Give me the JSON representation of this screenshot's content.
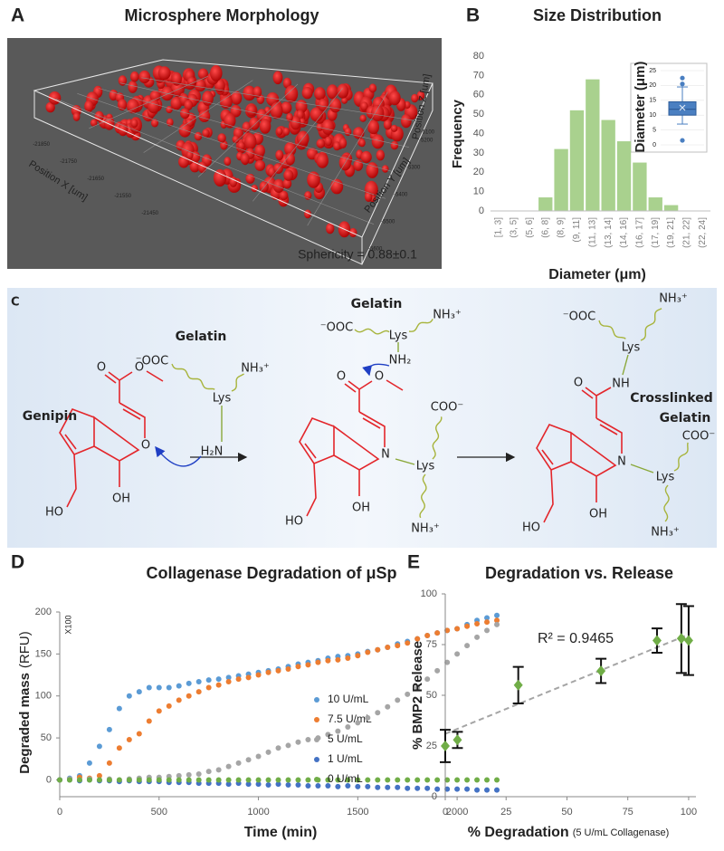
{
  "panel_a": {
    "panel": "A",
    "title": "Microsphere Morphology",
    "annotation": "Sphericity = 0.88±0.1",
    "axis_labels": [
      "Position X [um]",
      "Position Y [um]",
      "Position Z [um]"
    ],
    "x_ticks": [
      "-21850",
      "-21750",
      "-21650",
      "-21550",
      "-21450"
    ],
    "y_ticks": [
      "-5200",
      "-5300",
      "-5400",
      "-5500",
      "-5600"
    ],
    "z_ticks": [
      "-5100"
    ]
  },
  "scheme": {
    "panel": "C",
    "genipin": {
      "name": "Genipin",
      "atoms": [
        "O",
        "O",
        "O",
        "HO",
        "OH"
      ]
    },
    "gelatin_1": {
      "name": "Gelatin",
      "groups": [
        "⁻OOC",
        "NH₃⁺",
        "Lys",
        "H₂N"
      ]
    },
    "intermediate": {
      "atoms": [
        "O",
        "O",
        "N",
        "HO",
        "OH"
      ],
      "groups": [
        "Lys",
        "COO⁻",
        "NH₃⁺"
      ]
    },
    "gelatin_2": {
      "name": "Gelatin",
      "groups": [
        "⁻OOC",
        "NH₃⁺",
        "Lys",
        "NH₂"
      ]
    },
    "product": {
      "name": [
        "Crosslinked",
        "Gelatin"
      ],
      "atoms": [
        "O",
        "NH",
        "N",
        "HO",
        "OH"
      ],
      "groups": [
        "⁻OOC",
        "NH₃⁺",
        "Lys",
        "Lys",
        "COO⁻",
        "NH₃⁺"
      ]
    }
  },
  "chart_data": [
    {
      "type": "bar",
      "panel": "B",
      "title": "Size Distribution",
      "xlabel": "Diameter (μm)",
      "ylabel": "Frequency",
      "categories": [
        "[1, 3]",
        "(3, 5]",
        "(5, 6]",
        "(6, 8]",
        "(8, 9]",
        "(9, 11]",
        "(11, 13]",
        "(13, 14]",
        "(14, 16]",
        "(16, 17]",
        "(17, 19]",
        "(19, 21]",
        "(21, 22]",
        "(22, 24]"
      ],
      "values": [
        0,
        0,
        0,
        7,
        32,
        52,
        68,
        47,
        36,
        25,
        7,
        3,
        0,
        0
      ],
      "color": "#a9d18e",
      "ylim": [
        0,
        80
      ],
      "yticks": [
        0,
        10,
        20,
        30,
        40,
        50,
        60,
        70,
        80
      ]
    },
    {
      "type": "box",
      "ylabel": "Diameter (μm)",
      "ylim": [
        0,
        25
      ],
      "yticks": [
        0,
        5,
        10,
        15,
        20,
        25
      ],
      "color": "#4a7fc1",
      "box": {
        "min": 7,
        "q1": 10,
        "median": 12,
        "q3": 14.5,
        "max": 19.5,
        "mean": 12.5,
        "outliers": [
          22.5,
          20.5,
          1.5
        ]
      }
    },
    {
      "type": "scatter",
      "panel": "D",
      "title": "Collagenase Degradation of μSp",
      "xlabel": "Time (min)",
      "ylabel": "Degraded mass",
      "ylabel_unit": "(RFU)",
      "note": "X100",
      "xlim": [
        0,
        2250
      ],
      "ylim": [
        -20,
        200
      ],
      "xticks": [
        0,
        500,
        1000,
        1500,
        2000
      ],
      "yticks": [
        0,
        50,
        100,
        150,
        200
      ],
      "x": [
        0,
        50,
        100,
        150,
        200,
        250,
        300,
        350,
        400,
        450,
        500,
        550,
        600,
        650,
        700,
        750,
        800,
        850,
        900,
        950,
        1000,
        1050,
        1100,
        1150,
        1200,
        1250,
        1300,
        1350,
        1400,
        1450,
        1500,
        1550,
        1600,
        1650,
        1700,
        1750,
        1800,
        1850,
        1900,
        1950,
        2000,
        2050,
        2100,
        2150,
        2200
      ],
      "series": [
        {
          "name": "10 U/mL",
          "color": "#5b9bd5",
          "values": [
            0,
            2,
            5,
            20,
            40,
            60,
            85,
            100,
            105,
            110,
            110,
            110,
            112,
            115,
            117,
            119,
            120,
            122,
            124,
            126,
            128,
            130,
            132,
            135,
            138,
            140,
            142,
            145,
            147,
            148,
            150,
            153,
            155,
            158,
            162,
            165,
            168,
            172,
            175,
            178,
            180,
            185,
            190,
            193,
            196
          ]
        },
        {
          "name": "7.5 U/mL",
          "color": "#ed7d31",
          "values": [
            0,
            1,
            3,
            2,
            5,
            20,
            38,
            48,
            55,
            70,
            82,
            88,
            95,
            100,
            105,
            110,
            113,
            117,
            120,
            122,
            125,
            128,
            130,
            132,
            135,
            137,
            140,
            142,
            143,
            145,
            148,
            152,
            155,
            158,
            160,
            163,
            168,
            172,
            175,
            178,
            180,
            183,
            186,
            188,
            190
          ]
        },
        {
          "name": "5 U/mL",
          "color": "#a5a5a5",
          "values": [
            0,
            1,
            0,
            1,
            0,
            1,
            0,
            1,
            2,
            3,
            3,
            4,
            5,
            6,
            7,
            10,
            12,
            16,
            20,
            24,
            28,
            33,
            38,
            41,
            45,
            48,
            50,
            54,
            58,
            63,
            68,
            74,
            80,
            87,
            95,
            102,
            110,
            120,
            130,
            140,
            150,
            160,
            170,
            178,
            185
          ]
        },
        {
          "name": "1 U/mL",
          "color": "#4472c4",
          "values": [
            0,
            0,
            -1,
            0,
            -1,
            -1,
            -2,
            -1,
            -2,
            -2,
            -2,
            -3,
            -3,
            -3,
            -4,
            -4,
            -4,
            -5,
            -4,
            -5,
            -5,
            -6,
            -5,
            -6,
            -6,
            -7,
            -7,
            -7,
            -8,
            -7,
            -8,
            -8,
            -9,
            -9,
            -9,
            -10,
            -10,
            -10,
            -11,
            -11,
            -11,
            -11,
            -12,
            -12,
            -12
          ]
        },
        {
          "name": "0 U/mL",
          "color": "#70ad47",
          "values": [
            0,
            0,
            0,
            0,
            0,
            0,
            0,
            0,
            0,
            0,
            0,
            0,
            0,
            0,
            0,
            0,
            0,
            0,
            0,
            0,
            0,
            0,
            0,
            0,
            0,
            0,
            0,
            0,
            0,
            0,
            0,
            0,
            0,
            0,
            0,
            0,
            0,
            0,
            0,
            0,
            0,
            0,
            0,
            0,
            0
          ]
        }
      ]
    },
    {
      "type": "scatter",
      "panel": "E",
      "title": "Degradation vs. Release",
      "xlabel": "% Degradation",
      "xlabel_note": "(5 U/mL Collagenase)",
      "ylabel": "% BMP2 Release",
      "annotation": "R² = 0.9465",
      "xlim": [
        0,
        103
      ],
      "ylim": [
        0,
        100
      ],
      "xticks": [
        0,
        25,
        50,
        75,
        100
      ],
      "yticks": [
        0,
        25,
        50,
        75,
        100
      ],
      "x": [
        0,
        5,
        30,
        64,
        87,
        97,
        100
      ],
      "values": [
        25,
        28,
        55,
        62,
        77,
        78,
        77
      ],
      "errors": [
        8,
        4,
        9,
        6,
        6,
        17,
        17
      ],
      "color": "#70ad47",
      "trendline": {
        "x": [
          0,
          100
        ],
        "y": [
          31,
          80
        ],
        "color": "#a5a5a5"
      }
    }
  ]
}
